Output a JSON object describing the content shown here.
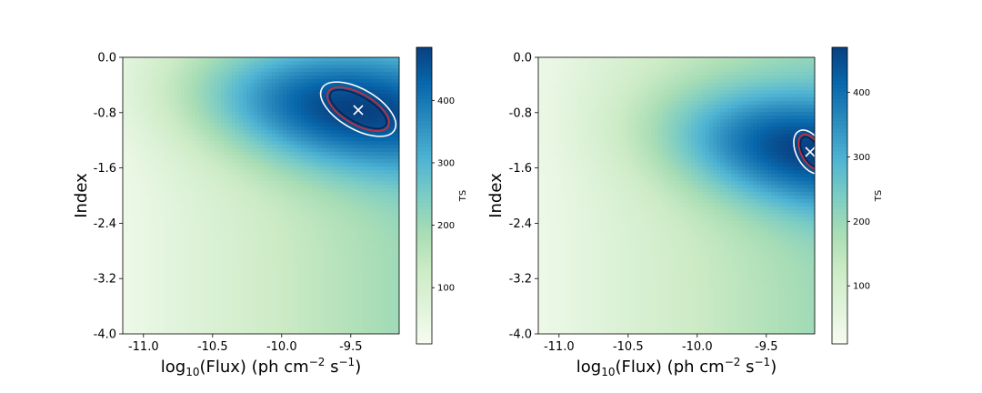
{
  "colormap": [
    "#f7fcf0",
    "#e0f3db",
    "#ccebc5",
    "#a8ddb5",
    "#7bccc4",
    "#4eb3d3",
    "#2b8cbe",
    "#0868ac",
    "#084081"
  ],
  "chart_data": [
    {
      "type": "heatmap",
      "panel": "left",
      "xlabel_pre": "log",
      "xlabel_sub": "10",
      "xlabel_mid": "(Flux) (ph cm",
      "xlabel_sup1": "−2",
      "xlabel_mid2": " s",
      "xlabel_sup2": "−1",
      "xlabel_post": ")",
      "ylabel": "Index",
      "xlim": [
        -11.15,
        -9.15
      ],
      "ylim": [
        -4.0,
        0.0
      ],
      "xticks": [
        -11.0,
        -10.5,
        -10.0,
        -9.5
      ],
      "xticklabels": [
        "-11.0",
        "-10.5",
        "-10.0",
        "-9.5"
      ],
      "yticks": [
        0.0,
        -0.8,
        -1.6,
        -2.4,
        -3.2,
        -4.0
      ],
      "yticklabels": [
        "0.0",
        "-0.8",
        "-1.6",
        "-2.4",
        "-3.2",
        "-4.0"
      ],
      "colorbar": {
        "label": "TS",
        "min": 10,
        "max": 485,
        "ticks": [
          100,
          200,
          300,
          400
        ],
        "ticklabels": [
          "100",
          "200",
          "300",
          "400"
        ]
      },
      "peak": {
        "x": -9.45,
        "y": -0.76,
        "ts": 485
      },
      "ridge_slope": 0.55,
      "marker": "x"
    },
    {
      "type": "heatmap",
      "panel": "right",
      "xlabel_pre": "log",
      "xlabel_sub": "10",
      "xlabel_mid": "(Flux) (ph cm",
      "xlabel_sup1": "−2",
      "xlabel_mid2": " s",
      "xlabel_sup2": "−1",
      "xlabel_post": ")",
      "ylabel": "Index",
      "xlim": [
        -11.15,
        -9.15
      ],
      "ylim": [
        -4.0,
        0.0
      ],
      "xticks": [
        -11.0,
        -10.5,
        -10.0,
        -9.5
      ],
      "xticklabels": [
        "-11.0",
        "-10.5",
        "-10.0",
        "-9.5"
      ],
      "yticks": [
        0.0,
        -0.8,
        -1.6,
        -2.4,
        -3.2,
        -4.0
      ],
      "yticklabels": [
        "0.0",
        "-0.8",
        "-1.6",
        "-2.4",
        "-3.2",
        "-4.0"
      ],
      "colorbar": {
        "label": "TS",
        "min": 10,
        "max": 470,
        "ticks": [
          100,
          200,
          300,
          400
        ],
        "ticklabels": [
          "100",
          "200",
          "300",
          "400"
        ]
      },
      "peak": {
        "x": -9.17,
        "y": -1.35,
        "ts": 470
      },
      "ridge_slope": 0.72,
      "marker": "x"
    }
  ]
}
